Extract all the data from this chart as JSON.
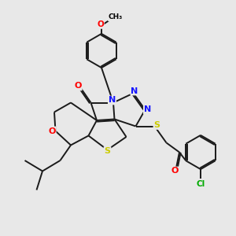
{
  "background_color": "#e8e8e8",
  "bond_color": "#1a1a1a",
  "atom_colors": {
    "N": "#1414ff",
    "O": "#ff0000",
    "S": "#cccc00",
    "Cl": "#00aa00",
    "C": "#1a1a1a"
  },
  "figsize": [
    3.0,
    3.0
  ],
  "dpi": 100,
  "lw": 1.4
}
